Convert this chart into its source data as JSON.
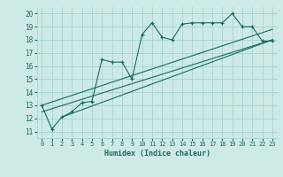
{
  "xlabel": "Humidex (Indice chaleur)",
  "xlim": [
    -0.5,
    23.5
  ],
  "ylim": [
    10.5,
    20.5
  ],
  "yticks": [
    11,
    12,
    13,
    14,
    15,
    16,
    17,
    18,
    19,
    20
  ],
  "xticks": [
    0,
    1,
    2,
    3,
    4,
    5,
    6,
    7,
    8,
    9,
    10,
    11,
    12,
    13,
    14,
    15,
    16,
    17,
    18,
    19,
    20,
    21,
    22,
    23
  ],
  "bg_color": "#cdeae6",
  "grid_color": "#aad4cf",
  "line_color": "#1a6b5a",
  "main_x": [
    0,
    1,
    2,
    3,
    4,
    5,
    6,
    7,
    8,
    9,
    10,
    11,
    12,
    13,
    14,
    15,
    16,
    17,
    18,
    19,
    20,
    21,
    22,
    23
  ],
  "main_y": [
    13.0,
    11.2,
    12.1,
    12.5,
    13.2,
    13.3,
    16.5,
    16.3,
    16.3,
    15.0,
    18.4,
    19.3,
    18.2,
    18.0,
    19.2,
    19.3,
    19.3,
    19.3,
    19.3,
    20.0,
    19.0,
    19.0,
    17.9,
    17.9
  ],
  "line1_x": [
    0,
    23
  ],
  "line1_y": [
    12.5,
    18.0
  ],
  "line2_x": [
    0,
    23
  ],
  "line2_y": [
    13.0,
    18.8
  ],
  "line3_x": [
    2,
    23
  ],
  "line3_y": [
    12.1,
    18.0
  ]
}
